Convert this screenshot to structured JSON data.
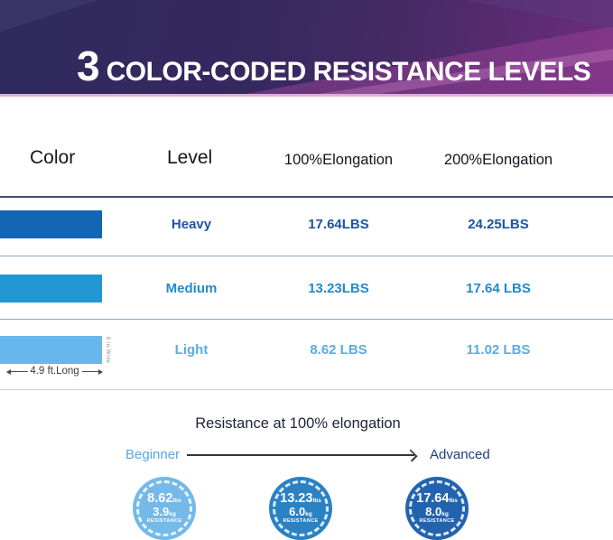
{
  "banner": {
    "number": "3",
    "title": "COLOR-CODED RESISTANCE LEVELS"
  },
  "table": {
    "headers": [
      "Color",
      "Level",
      "100%Elongation",
      "200%Elongation"
    ],
    "rows": [
      {
        "level": "Heavy",
        "elongation_100": "17.64LBS",
        "elongation_200": "24.25LBS",
        "bar_color": "#1266b3",
        "text_color": "#1d55a4"
      },
      {
        "level": "Medium",
        "elongation_100": "13.23LBS",
        "elongation_200": "17.64 LBS",
        "bar_color": "#2196d3",
        "text_color": "#2589ca"
      },
      {
        "level": "Light",
        "elongation_100": "8.62 LBS",
        "elongation_200": "11.02 LBS",
        "bar_color": "#68b6ee",
        "text_color": "#59ade2"
      }
    ],
    "band_length_label": "4.9 ft.Long",
    "band_width_label": "6 in.Wide"
  },
  "bottom": {
    "subtitle": "Resistance at 100% elongation",
    "scale_left": "Beginner",
    "scale_left_color": "#57a9de",
    "scale_right": "Advanced",
    "scale_right_color": "#1d3f7e",
    "units": {
      "lbs": "lbs",
      "kg": "kg"
    },
    "badges": [
      {
        "lbs": "8.62",
        "kg": "3.9",
        "caption": "RESISTANCE",
        "color": "#74b9e7"
      },
      {
        "lbs": "13.23",
        "kg": "6.0",
        "caption": "RESISTANCE",
        "color": "#2a82c4"
      },
      {
        "lbs": "17.64",
        "kg": "8.0",
        "caption": "RESISTANCE",
        "color": "#2363ae"
      }
    ]
  },
  "colors": {
    "banner_dark": "#302a5e",
    "banner_magenta": "#933f93",
    "banner_underline": "#dcb0d8",
    "header_rule": "#3f4e74",
    "row_rule": "#8aa4c4"
  }
}
